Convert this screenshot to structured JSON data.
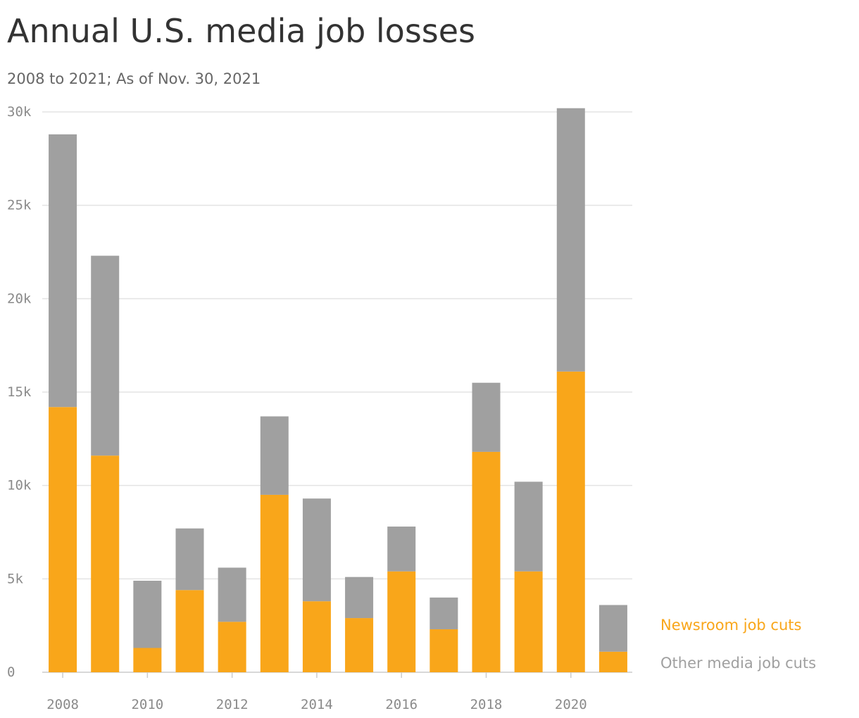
{
  "chart_data": {
    "type": "stacked-bar",
    "title": "Annual U.S. media job losses",
    "subtitle": "2008 to 2021; As of Nov. 30, 2021",
    "x": [
      2008,
      2009,
      2010,
      2011,
      2012,
      2013,
      2014,
      2015,
      2016,
      2017,
      2018,
      2019,
      2020,
      2021
    ],
    "series": [
      {
        "name": "Newsroom job cuts",
        "color": "#f9a61a",
        "values": [
          14200,
          11600,
          1300,
          4400,
          2700,
          9500,
          3800,
          2900,
          5400,
          2300,
          11800,
          5400,
          16100,
          1100
        ]
      },
      {
        "name": "Other media job cuts",
        "color": "#a0a0a0",
        "values": [
          14600,
          10700,
          3600,
          3300,
          2900,
          4200,
          5500,
          2200,
          2400,
          1700,
          3700,
          4800,
          14100,
          2500
        ]
      }
    ],
    "xlim": [
      2007.5,
      2021.5
    ],
    "xticks": [
      2008,
      2010,
      2012,
      2014,
      2016,
      2018,
      2020
    ],
    "ylim": [
      0,
      30000
    ],
    "yticks": [
      0,
      {
        "value": 5000,
        "label": "5k"
      },
      {
        "value": 10000,
        "label": "10k"
      },
      {
        "value": 15000,
        "label": "15k"
      },
      {
        "value": 20000,
        "label": "20k"
      },
      {
        "value": 25000,
        "label": "25k"
      },
      {
        "value": 30000,
        "label": "30k"
      }
    ],
    "grid": true
  }
}
